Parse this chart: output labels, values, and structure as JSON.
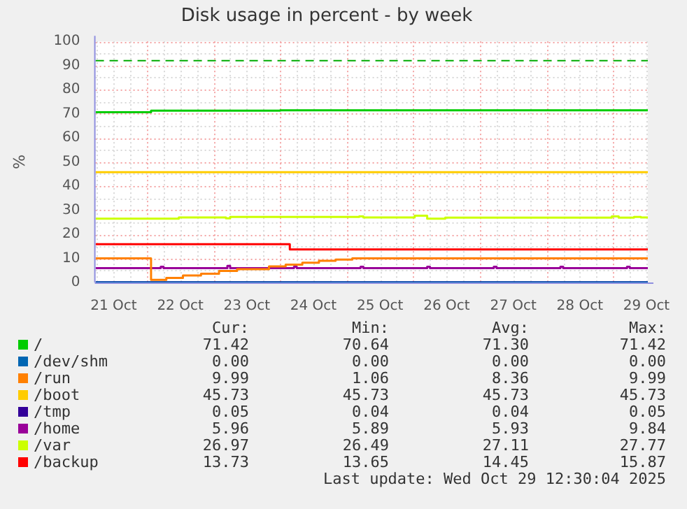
{
  "chart_data": {
    "type": "step",
    "title": "Disk usage in percent - by week",
    "ylabel": "%",
    "xlim": [
      "2025-10-21T05:30",
      "2025-10-29T12:30"
    ],
    "xticks": [
      {
        "value": "2025-10-21T06:00",
        "label": null
      },
      {
        "value": "2025-10-21T12:00",
        "label": "21 Oct"
      },
      {
        "value": "2025-10-21T18:00",
        "label": null
      },
      {
        "value": "2025-10-22T00:00",
        "label": null
      },
      {
        "value": "2025-10-22T06:00",
        "label": null
      },
      {
        "value": "2025-10-22T12:00",
        "label": "22 Oct"
      },
      {
        "value": "2025-10-22T18:00",
        "label": null
      },
      {
        "value": "2025-10-23T00:00",
        "label": null
      },
      {
        "value": "2025-10-23T06:00",
        "label": null
      },
      {
        "value": "2025-10-23T12:00",
        "label": "23 Oct"
      },
      {
        "value": "2025-10-23T18:00",
        "label": null
      },
      {
        "value": "2025-10-24T00:00",
        "label": null
      },
      {
        "value": "2025-10-24T06:00",
        "label": null
      },
      {
        "value": "2025-10-24T12:00",
        "label": "24 Oct"
      },
      {
        "value": "2025-10-24T18:00",
        "label": null
      },
      {
        "value": "2025-10-25T00:00",
        "label": null
      },
      {
        "value": "2025-10-25T06:00",
        "label": null
      },
      {
        "value": "2025-10-25T12:00",
        "label": "25 Oct"
      },
      {
        "value": "2025-10-25T18:00",
        "label": null
      },
      {
        "value": "2025-10-26T00:00",
        "label": null
      },
      {
        "value": "2025-10-26T06:00",
        "label": null
      },
      {
        "value": "2025-10-26T12:00",
        "label": "26 Oct"
      },
      {
        "value": "2025-10-26T18:00",
        "label": null
      },
      {
        "value": "2025-10-27T00:00",
        "label": null
      },
      {
        "value": "2025-10-27T06:00",
        "label": null
      },
      {
        "value": "2025-10-27T12:00",
        "label": "27 Oct"
      },
      {
        "value": "2025-10-27T18:00",
        "label": null
      },
      {
        "value": "2025-10-28T00:00",
        "label": null
      },
      {
        "value": "2025-10-28T06:00",
        "label": null
      },
      {
        "value": "2025-10-28T12:00",
        "label": "28 Oct"
      },
      {
        "value": "2025-10-28T18:00",
        "label": null
      },
      {
        "value": "2025-10-29T00:00",
        "label": null
      },
      {
        "value": "2025-10-29T06:00",
        "label": null
      },
      {
        "value": "2025-10-29T12:00",
        "label": "29 Oct"
      }
    ],
    "ylim": [
      0,
      100
    ],
    "yticks": [
      0,
      {
        "value": 5,
        "label": null
      },
      10,
      {
        "value": 15,
        "label": null
      },
      20,
      {
        "value": 25,
        "label": null
      },
      30,
      {
        "value": 35,
        "label": null
      },
      40,
      {
        "value": 45,
        "label": null
      },
      50,
      {
        "value": 55,
        "label": null
      },
      60,
      {
        "value": 65,
        "label": null
      },
      70,
      {
        "value": 75,
        "label": null
      },
      80,
      {
        "value": 85,
        "label": null
      },
      90,
      {
        "value": 95,
        "label": null
      },
      100
    ],
    "grid": true,
    "legend": "bottom",
    "marker": "none",
    "ref_lines": [
      {
        "axis": "y",
        "value": 92,
        "label": null,
        "color": "#00aa00",
        "line_style": "dashed"
      }
    ],
    "series": [
      {
        "name": "/",
        "color": "#00cc00",
        "x": [
          "2025-10-21T05:30",
          "2025-10-22T01:30",
          "2025-10-24T00:00",
          "2025-10-29T12:30"
        ],
        "values": [
          70.64,
          71.3,
          71.42,
          71.42
        ]
      },
      {
        "name": "/dev/shm",
        "color": "#0066b3",
        "x": [
          "2025-10-21T05:30",
          "2025-10-29T12:30"
        ],
        "values": [
          0,
          0
        ]
      },
      {
        "name": "/run",
        "color": "#ff8000",
        "x": [
          "2025-10-21T05:30",
          "2025-10-22T01:30",
          "2025-10-22T07:00",
          "2025-10-22T13:00",
          "2025-10-22T19:30",
          "2025-10-23T02:00",
          "2025-10-23T08:30",
          "2025-10-23T20:00",
          "2025-10-24T02:00",
          "2025-10-24T08:00",
          "2025-10-24T14:00",
          "2025-10-24T20:00",
          "2025-10-25T02:00",
          "2025-10-29T12:30"
        ],
        "values": [
          9.99,
          1.06,
          1.9,
          2.9,
          3.6,
          4.8,
          5.5,
          6.7,
          7.4,
          8.2,
          9.0,
          9.5,
          9.99,
          9.99
        ]
      },
      {
        "name": "/boot",
        "color": "#ffcc00",
        "x": [
          "2025-10-21T05:30",
          "2025-10-29T12:30"
        ],
        "values": [
          45.73,
          45.73
        ]
      },
      {
        "name": "/tmp",
        "color": "#330099",
        "x": [
          "2025-10-21T05:30",
          "2025-10-29T12:30"
        ],
        "values": [
          0.05,
          0.05
        ]
      },
      {
        "name": "/home",
        "color": "#990099",
        "x": [
          "2025-10-21T05:30",
          "2025-10-22T05:00",
          "2025-10-22T06:00",
          "2025-10-23T05:00",
          "2025-10-23T06:00",
          "2025-10-24T05:00",
          "2025-10-24T06:00",
          "2025-10-25T05:00",
          "2025-10-25T06:00",
          "2025-10-26T05:00",
          "2025-10-26T06:00",
          "2025-10-27T05:00",
          "2025-10-27T06:00",
          "2025-10-28T05:00",
          "2025-10-28T06:00",
          "2025-10-29T05:00",
          "2025-10-29T06:00",
          "2025-10-29T12:30"
        ],
        "values": [
          5.93,
          6.5,
          5.93,
          6.9,
          5.93,
          6.5,
          5.93,
          6.5,
          5.93,
          6.5,
          5.93,
          6.5,
          5.93,
          6.5,
          5.93,
          6.5,
          5.96,
          5.96
        ]
      },
      {
        "name": "/var",
        "color": "#ccff00",
        "x": [
          "2025-10-21T05:30",
          "2025-10-22T11:30",
          "2025-10-23T04:30",
          "2025-10-23T06:00",
          "2025-10-25T04:30",
          "2025-10-25T06:00",
          "2025-10-26T00:30",
          "2025-10-26T05:00",
          "2025-10-26T11:30",
          "2025-10-28T23:30",
          "2025-10-29T02:00",
          "2025-10-29T07:30",
          "2025-10-29T10:00",
          "2025-10-29T12:30"
        ],
        "values": [
          26.5,
          27.0,
          26.6,
          27.2,
          27.4,
          27.0,
          27.7,
          26.5,
          26.9,
          27.4,
          26.9,
          27.2,
          26.97,
          26.97
        ]
      },
      {
        "name": "/backup",
        "color": "#ff0000",
        "x": [
          "2025-10-21T05:30",
          "2025-10-24T03:30",
          "2025-10-29T12:30"
        ],
        "values": [
          15.87,
          13.73,
          13.73
        ]
      }
    ],
    "annotations": [
      "Cur:",
      "Min:",
      "Avg:",
      "Max:",
      "71.42",
      "70.64",
      "71.30",
      "71.42",
      "0.00",
      "0.00",
      "0.00",
      "0.00",
      "9.99",
      "1.06",
      "8.36",
      "9.99",
      "45.73",
      "45.73",
      "45.73",
      "45.73",
      "0.05",
      "0.04",
      "0.04",
      "0.05",
      "5.96",
      "5.89",
      "5.93",
      "9.84",
      "26.97",
      "26.49",
      "27.11",
      "27.77",
      "13.73",
      "13.65",
      "14.45",
      "15.87",
      "Last update: Wed Oct 29 12:30:04 2025"
    ]
  }
}
